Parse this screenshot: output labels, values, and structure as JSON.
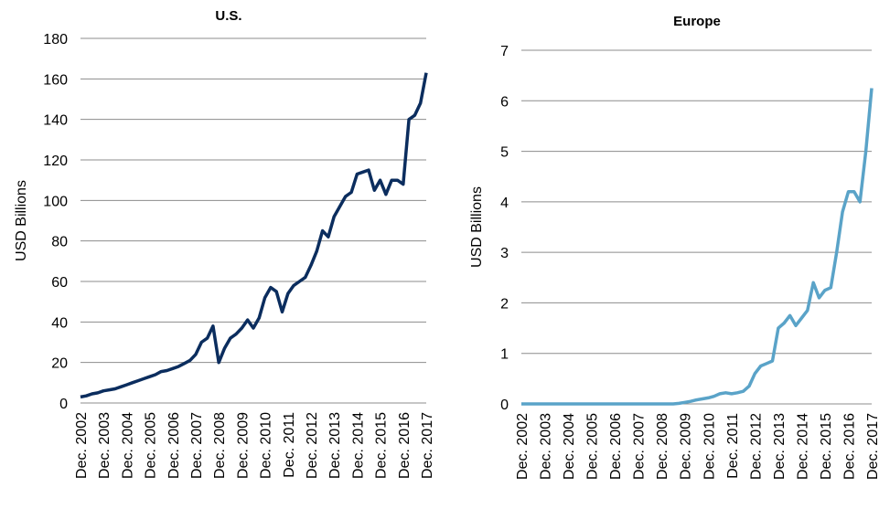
{
  "chart_data": [
    {
      "type": "line",
      "title": "U.S.",
      "y_label": "USD Billions",
      "categories": [
        "Dec. 2002",
        null,
        null,
        null,
        "Dec. 2003",
        null,
        null,
        null,
        "Dec. 2004",
        null,
        null,
        null,
        "Dec. 2005",
        null,
        null,
        null,
        "Dec. 2006",
        null,
        null,
        null,
        "Dec. 2007",
        null,
        null,
        null,
        "Dec. 2008",
        null,
        null,
        null,
        "Dec. 2009",
        null,
        null,
        null,
        "Dec. 2010",
        null,
        null,
        null,
        "Dec. 2011",
        null,
        null,
        null,
        "Dec. 2012",
        null,
        null,
        null,
        "Dec. 2013",
        null,
        null,
        null,
        "Dec. 2014",
        null,
        null,
        null,
        "Dec. 2015",
        null,
        null,
        null,
        "Dec. 2016",
        null,
        null,
        null,
        "Dec. 2017"
      ],
      "values": [
        3,
        3.5,
        4.5,
        5,
        6,
        6.5,
        7,
        8,
        9,
        10,
        11,
        12,
        13,
        14,
        15.5,
        16,
        17,
        18,
        19.5,
        21,
        24,
        30,
        32,
        38,
        20,
        27,
        32,
        34,
        37,
        41,
        37,
        42,
        52,
        57,
        55,
        45,
        54,
        58,
        60,
        62,
        68,
        75,
        85,
        82,
        92,
        97,
        102,
        104,
        113,
        114,
        115,
        105,
        110,
        103,
        110,
        110,
        108,
        140,
        142,
        148,
        163
      ],
      "color": "#0b2d5e",
      "ylim": [
        0,
        180
      ],
      "yticks": [
        0,
        20,
        40,
        60,
        80,
        100,
        120,
        140,
        160,
        180
      ],
      "grid": true
    },
    {
      "type": "line",
      "title": "Europe",
      "y_label": "USD Billions",
      "categories": [
        "Dec. 2002",
        null,
        null,
        null,
        "Dec. 2003",
        null,
        null,
        null,
        "Dec. 2004",
        null,
        null,
        null,
        "Dec. 2005",
        null,
        null,
        null,
        "Dec. 2006",
        null,
        null,
        null,
        "Dec. 2007",
        null,
        null,
        null,
        "Dec. 2008",
        null,
        null,
        null,
        "Dec. 2009",
        null,
        null,
        null,
        "Dec. 2010",
        null,
        null,
        null,
        "Dec. 2011",
        null,
        null,
        null,
        "Dec. 2012",
        null,
        null,
        null,
        "Dec. 2013",
        null,
        null,
        null,
        "Dec. 2014",
        null,
        null,
        null,
        "Dec. 2015",
        null,
        null,
        null,
        "Dec. 2016",
        null,
        null,
        null,
        "Dec. 2017"
      ],
      "values": [
        0,
        0,
        0,
        0,
        0,
        0,
        0,
        0,
        0,
        0,
        0,
        0,
        0,
        0,
        0,
        0,
        0,
        0,
        0,
        0,
        0,
        0,
        0,
        0,
        0,
        0,
        0,
        0.01,
        0.03,
        0.05,
        0.08,
        0.1,
        0.12,
        0.15,
        0.2,
        0.22,
        0.2,
        0.22,
        0.25,
        0.35,
        0.6,
        0.75,
        0.8,
        0.85,
        1.5,
        1.6,
        1.75,
        1.55,
        1.7,
        1.85,
        2.4,
        2.1,
        2.25,
        2.3,
        3.0,
        3.8,
        4.2,
        4.2,
        4.0,
        5.0,
        6.25
      ],
      "color": "#5aa3c8",
      "ylim": [
        0,
        7
      ],
      "yticks": [
        0,
        1,
        2,
        3,
        4,
        5,
        6,
        7
      ],
      "grid": true
    }
  ]
}
